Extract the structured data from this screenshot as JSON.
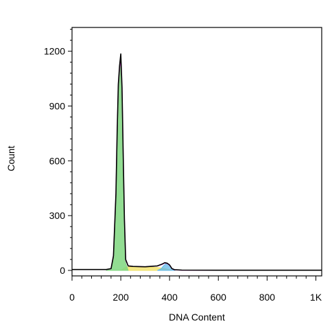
{
  "chart_data": {
    "type": "area",
    "xlabel": "DNA Content",
    "ylabel": "Count",
    "xlim": [
      0,
      1024
    ],
    "ylim": [
      -30,
      1330
    ],
    "x_ticks": [
      {
        "value": 0,
        "label": "0"
      },
      {
        "value": 200,
        "label": "200"
      },
      {
        "value": 400,
        "label": "400"
      },
      {
        "value": 600,
        "label": "600"
      },
      {
        "value": 800,
        "label": "800"
      },
      {
        "value": 1000,
        "label": "1K"
      }
    ],
    "y_ticks": [
      {
        "value": 0,
        "label": "0"
      },
      {
        "value": 300,
        "label": "300"
      },
      {
        "value": 600,
        "label": "600"
      },
      {
        "value": 900,
        "label": "900"
      },
      {
        "value": 1200,
        "label": "1200"
      }
    ],
    "grid": false,
    "legend": "none",
    "series": [
      {
        "role": "histogram",
        "color": "#000000",
        "x": [
          0,
          140,
          160,
          170,
          180,
          185,
          190,
          195,
          200,
          205,
          210,
          215,
          220,
          230,
          250,
          300,
          350,
          370,
          380,
          390,
          400,
          410,
          420,
          450,
          600,
          800,
          1024
        ],
        "values": [
          5,
          5,
          10,
          80,
          420,
          760,
          1020,
          1120,
          1185,
          1000,
          640,
          280,
          60,
          25,
          22,
          20,
          25,
          35,
          42,
          40,
          30,
          10,
          4,
          2,
          1,
          1,
          1
        ]
      },
      {
        "role": "g1-fit",
        "color": "#7fd77f",
        "x": [
          140,
          160,
          170,
          180,
          185,
          190,
          195,
          200,
          205,
          210,
          215,
          220,
          230
        ],
        "values": [
          0,
          8,
          60,
          380,
          720,
          980,
          1080,
          1140,
          950,
          600,
          250,
          40,
          0
        ]
      },
      {
        "role": "s-phase-fit",
        "color": "#f0e060",
        "x": [
          200,
          220,
          250,
          300,
          350,
          380,
          400,
          410
        ],
        "values": [
          0,
          18,
          20,
          18,
          16,
          10,
          4,
          0
        ]
      },
      {
        "role": "g2-fit",
        "color": "#60b8e8",
        "x": [
          350,
          365,
          375,
          385,
          392,
          400,
          408,
          420
        ],
        "values": [
          0,
          8,
          25,
          36,
          38,
          30,
          12,
          0
        ]
      },
      {
        "role": "fit-sum",
        "color": "#e040e0",
        "x": [
          0,
          140,
          160,
          170,
          180,
          185,
          190,
          195,
          200,
          205,
          210,
          215,
          220,
          230,
          250,
          300,
          350,
          370,
          380,
          390,
          400,
          410,
          420,
          450,
          1024
        ],
        "values": [
          4,
          4,
          9,
          75,
          410,
          750,
          1010,
          1100,
          1160,
          980,
          625,
          270,
          55,
          24,
          22,
          20,
          24,
          33,
          40,
          38,
          28,
          9,
          3,
          1,
          1
        ]
      }
    ]
  }
}
